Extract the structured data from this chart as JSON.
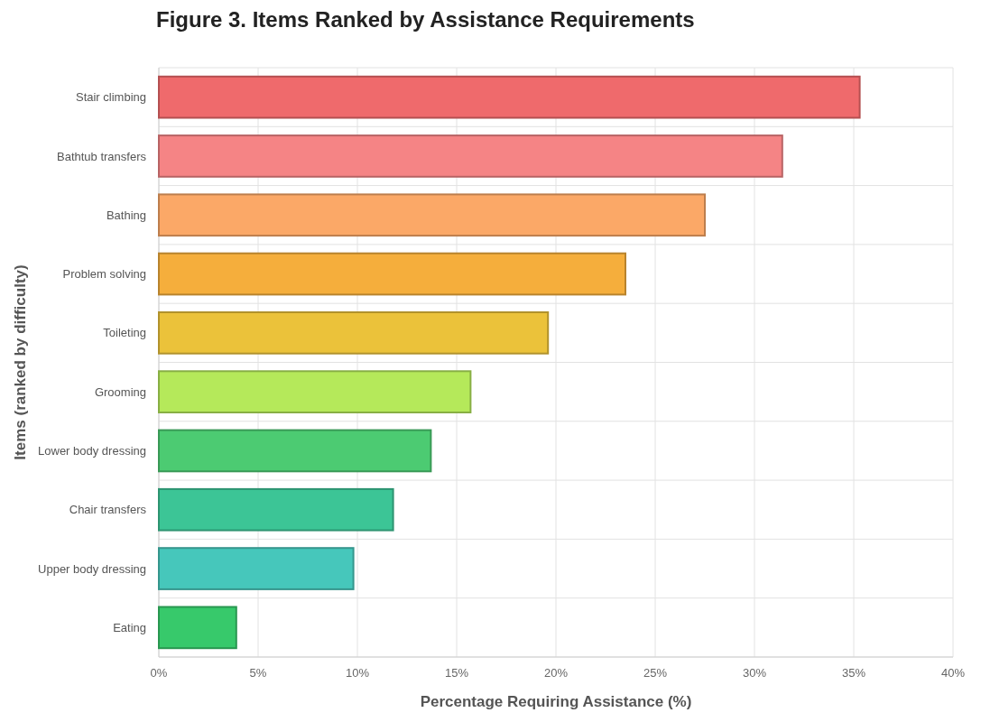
{
  "chart_data": {
    "type": "bar",
    "orientation": "horizontal",
    "title": "Figure 3. Items Ranked by Assistance Requirements",
    "xlabel": "Percentage Requiring Assistance (%)",
    "ylabel": "Items (ranked by difficulty)",
    "categories": [
      "Stair climbing",
      "Bathtub transfers",
      "Bathing",
      "Problem solving",
      "Toileting",
      "Grooming",
      "Lower body dressing",
      "Chair transfers",
      "Upper body dressing",
      "Eating"
    ],
    "values": [
      35.3,
      31.4,
      27.5,
      23.5,
      19.6,
      15.7,
      13.7,
      11.8,
      9.8,
      3.9
    ],
    "colors": [
      "#ef6a6c",
      "#f58485",
      "#fba867",
      "#f5ae3c",
      "#ebc23a",
      "#b5e95a",
      "#4ccb72",
      "#3cc596",
      "#46c7bb",
      "#37c96b"
    ],
    "xlim": [
      0,
      40
    ],
    "xticks": [
      {
        "value": 0,
        "label": "0%"
      },
      {
        "value": 5,
        "label": "5%"
      },
      {
        "value": 10,
        "label": "10%"
      },
      {
        "value": 15,
        "label": "15%"
      },
      {
        "value": 20,
        "label": "20%"
      },
      {
        "value": 25,
        "label": "25%"
      },
      {
        "value": 30,
        "label": "30%"
      },
      {
        "value": 35,
        "label": "35%"
      },
      {
        "value": 40,
        "label": "40%"
      }
    ],
    "grid": true
  }
}
